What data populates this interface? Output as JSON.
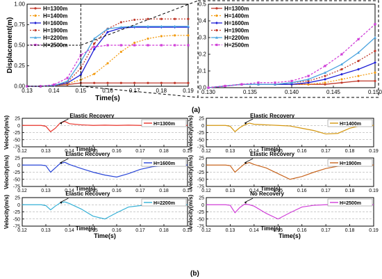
{
  "figure": {
    "part_a_label": "(a)",
    "part_b_label": "(b)",
    "legend_names": [
      "H=1300m",
      "H=1400m",
      "H=1600m",
      "H=1900m",
      "H=2200m",
      "H=2500m"
    ],
    "colors": {
      "H=1300m": "#c0392b",
      "H=1400m": "#f39c12",
      "H=1600m": "#1f1fd6",
      "H=1900m": "#c0392b",
      "H=2200m": "#4aa3df",
      "H=2500m": "#d03fd8"
    },
    "panel_colors": [
      "#e8332a",
      "#d4960e",
      "#2845d8",
      "#c8651e",
      "#34b0d6",
      "#d03fd8"
    ]
  },
  "chart_data": [
    {
      "type": "line",
      "xlabel": "Time(s)",
      "ylabel": "Displacement(m)",
      "xlim": [
        0.13,
        0.19
      ],
      "ylim": [
        0.0,
        1.0
      ],
      "xticks": [
        "0.13",
        "0.14",
        "0.15",
        "0.16",
        "0.17",
        "0.18",
        "0.19"
      ],
      "yticks": [
        "0.00",
        "0.25",
        "0.50",
        "0.75",
        "1.00"
      ],
      "legend_position": "top-left",
      "x": [
        0.13,
        0.135,
        0.14,
        0.145,
        0.15,
        0.155,
        0.16,
        0.165,
        0.17,
        0.175,
        0.18,
        0.185,
        0.19
      ],
      "series": [
        {
          "name": "H=1300m",
          "values": [
            0.0,
            0.0,
            0.01,
            0.02,
            0.04,
            0.04,
            0.04,
            0.04,
            0.04,
            0.04,
            0.04,
            0.04,
            0.04
          ]
        },
        {
          "name": "H=1400m",
          "values": [
            0.0,
            0.0,
            0.01,
            0.03,
            0.08,
            0.15,
            0.28,
            0.42,
            0.53,
            0.58,
            0.61,
            0.62,
            0.62
          ]
        },
        {
          "name": "H=1600m",
          "values": [
            0.0,
            0.0,
            0.01,
            0.04,
            0.14,
            0.45,
            0.66,
            0.71,
            0.72,
            0.72,
            0.72,
            0.72,
            0.72
          ]
        },
        {
          "name": "H=1900m",
          "values": [
            0.0,
            0.0,
            0.01,
            0.05,
            0.22,
            0.52,
            0.7,
            0.78,
            0.81,
            0.82,
            0.82,
            0.82,
            0.82
          ]
        },
        {
          "name": "H=2200m",
          "values": [
            0.0,
            0.0,
            0.01,
            0.06,
            0.3,
            0.58,
            0.7,
            0.72,
            0.73,
            0.73,
            0.73,
            0.73,
            0.73
          ]
        },
        {
          "name": "H=2500m",
          "values": [
            0.0,
            0.0,
            0.02,
            0.1,
            0.38,
            0.48,
            0.5,
            0.5,
            0.5,
            0.5,
            0.5,
            0.5,
            0.5
          ]
        }
      ]
    },
    {
      "type": "line",
      "xlabel": "",
      "ylabel": "",
      "xlim": [
        0.13,
        0.15
      ],
      "ylim": [
        0.0,
        0.5
      ],
      "xticks": [
        "0.130",
        "0.135",
        "0.140",
        "0.145",
        "0.150"
      ],
      "yticks": [
        "0.0",
        "0.1",
        "0.2",
        "0.3",
        "0.4",
        "0.5"
      ],
      "legend_position": "top-left",
      "x": [
        0.13,
        0.132,
        0.134,
        0.136,
        0.138,
        0.14,
        0.142,
        0.144,
        0.146,
        0.148,
        0.15
      ],
      "series": [
        {
          "name": "H=1300m",
          "values": [
            0.0,
            0.01,
            0.02,
            0.02,
            0.02,
            0.02,
            0.02,
            0.02,
            0.03,
            0.04,
            0.04
          ]
        },
        {
          "name": "H=1400m",
          "values": [
            0.0,
            0.01,
            0.02,
            0.02,
            0.02,
            0.02,
            0.02,
            0.03,
            0.05,
            0.07,
            0.09
          ]
        },
        {
          "name": "H=1600m",
          "values": [
            0.0,
            0.01,
            0.02,
            0.02,
            0.02,
            0.02,
            0.03,
            0.05,
            0.08,
            0.11,
            0.15
          ]
        },
        {
          "name": "H=1900m",
          "values": [
            0.0,
            0.01,
            0.02,
            0.02,
            0.02,
            0.03,
            0.04,
            0.07,
            0.11,
            0.16,
            0.22
          ]
        },
        {
          "name": "H=2200m",
          "values": [
            0.0,
            0.01,
            0.02,
            0.02,
            0.02,
            0.03,
            0.05,
            0.09,
            0.14,
            0.21,
            0.3
          ]
        },
        {
          "name": "H=2500m",
          "values": [
            0.0,
            0.01,
            0.02,
            0.03,
            0.03,
            0.04,
            0.07,
            0.13,
            0.2,
            0.29,
            0.38
          ]
        }
      ]
    },
    {
      "type": "line",
      "panel_grid": "3x2",
      "xlabel": "Time(s)",
      "ylabel": "Velocity(m/s)",
      "xlim": [
        0.12,
        0.19
      ],
      "ylim": [
        -75,
        25
      ],
      "xticks": [
        "0.12",
        "0.13",
        "0.14",
        "0.15",
        "0.16",
        "0.17",
        "0.18",
        "0.19"
      ],
      "yticks": [
        "25",
        "0",
        "-25",
        "-50",
        "-75"
      ],
      "x": [
        0.12,
        0.128,
        0.13,
        0.132,
        0.134,
        0.136,
        0.138,
        0.14,
        0.145,
        0.15,
        0.155,
        0.16,
        0.165,
        0.17,
        0.175,
        0.18,
        0.185,
        0.19
      ],
      "panels": [
        {
          "name": "H=1300m",
          "annotation": "Elastic Recovery",
          "values": [
            0,
            0,
            -3,
            -22,
            -10,
            8,
            14,
            6,
            2,
            0,
            1,
            0,
            1,
            0,
            0,
            1,
            0,
            0
          ]
        },
        {
          "name": "H=1400m",
          "annotation": "Elastic Recovery",
          "values": [
            0,
            0,
            -3,
            -22,
            -8,
            2,
            8,
            4,
            2,
            0,
            -2,
            -10,
            -18,
            -30,
            -28,
            -10,
            0,
            0
          ]
        },
        {
          "name": "H=1600m",
          "annotation": "Elastic Recovery",
          "values": [
            0,
            0,
            -2,
            -25,
            -10,
            5,
            10,
            2,
            -12,
            -25,
            -35,
            -42,
            -30,
            -15,
            -6,
            -2,
            0,
            0
          ]
        },
        {
          "name": "H=1900m",
          "annotation": "Elastic Recovery",
          "values": [
            0,
            0,
            -2,
            -25,
            -10,
            4,
            9,
            2,
            -10,
            -30,
            -50,
            -40,
            -25,
            -12,
            -4,
            0,
            0,
            0
          ]
        },
        {
          "name": "H=2200m",
          "annotation": "Elastic Recovery",
          "values": [
            0,
            0,
            -3,
            -18,
            -5,
            6,
            10,
            4,
            -15,
            -40,
            -50,
            -28,
            -8,
            -3,
            0,
            0,
            0,
            0
          ]
        },
        {
          "name": "H=2500m",
          "annotation": "No Recovery",
          "values": [
            0,
            0,
            -2,
            -28,
            -10,
            2,
            0,
            -5,
            -30,
            -50,
            -28,
            -8,
            -2,
            0,
            0,
            0,
            0,
            0
          ]
        }
      ]
    }
  ]
}
